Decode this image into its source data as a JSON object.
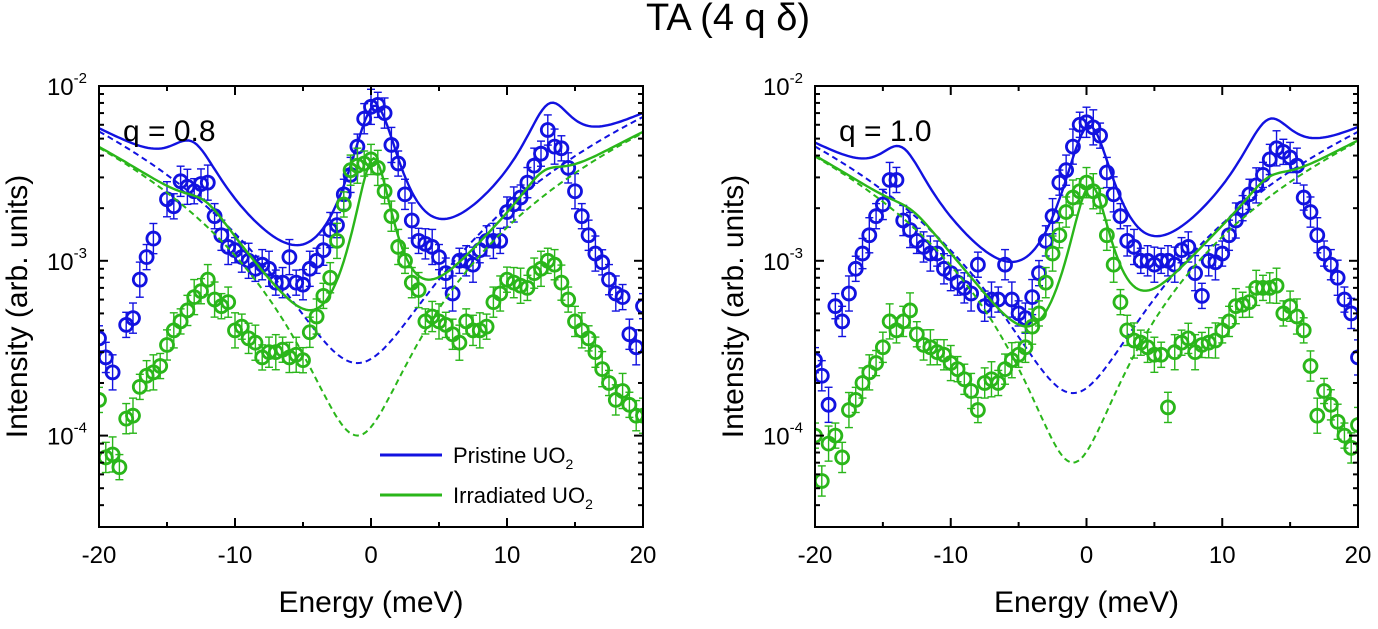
{
  "figure_title": "TA (4 q δ)",
  "legend": {
    "pristine": {
      "prefix": "Pristine UO",
      "sub": "2"
    },
    "irradiated": {
      "prefix": "Irradiated UO",
      "sub": "2"
    }
  },
  "colors": {
    "pristine": "#1212e0",
    "irradiated": "#2ab61a",
    "axis": "#000000"
  },
  "chart_data": [
    {
      "type": "scatter",
      "title": "",
      "annotation": "q = 0.8",
      "xlabel": "Energy (meV)",
      "ylabel": "Intensity (arb. units)",
      "xlim": [
        -20,
        20
      ],
      "ylim": [
        3e-05,
        0.01
      ],
      "yscale": "log",
      "xticks": [
        {
          "v": -20,
          "t": "-20"
        },
        {
          "v": -10,
          "t": "-10"
        },
        {
          "v": 0,
          "t": "0"
        },
        {
          "v": 10,
          "t": "10"
        },
        {
          "v": 20,
          "t": "20"
        }
      ],
      "yticks": [
        {
          "v": 0.0001,
          "base": "10",
          "exp": "-4"
        },
        {
          "v": 0.001,
          "base": "10",
          "exp": "-3"
        },
        {
          "v": 0.01,
          "base": "10",
          "exp": "-2"
        }
      ],
      "legend_position": "bottom-right",
      "series": [
        {
          "name": "Pristine UO2",
          "color_key": "pristine",
          "fit": {
            "peaks": [
              {
                "c": -13.2,
                "h": 0.0023,
                "w": 2.0
              },
              {
                "c": 0.3,
                "h": 0.0073,
                "w": 1.55
              },
              {
                "c": 13.2,
                "h": 0.0047,
                "w": 1.8
              }
            ],
            "bg": {
              "c": -1.0,
              "v": 0.00026,
              "k": 0.0058
            }
          },
          "x": [
            -20,
            -19.5,
            -19,
            -18,
            -17.5,
            -17,
            -16.5,
            -16,
            -15,
            -14.5,
            -14,
            -13.5,
            -13,
            -12.5,
            -12,
            -11.5,
            -11,
            -10.5,
            -10,
            -9.5,
            -9,
            -8.5,
            -8,
            -7.5,
            -7,
            -6.5,
            -6,
            -5.5,
            -5,
            -4.5,
            -4,
            -3.5,
            -3,
            -2.5,
            -2,
            -1.5,
            -1,
            -0.5,
            0,
            0.5,
            1,
            1.5,
            2,
            2.5,
            3,
            3.5,
            4,
            4.5,
            5,
            5.5,
            6,
            6.5,
            7,
            7.5,
            8,
            8.5,
            9,
            9.5,
            10,
            10.5,
            11,
            11.5,
            12,
            12.5,
            13,
            13.5,
            14,
            14.5,
            15,
            15.5,
            16,
            16.5,
            17,
            17.5,
            18,
            18.5,
            19,
            19.5,
            20
          ],
          "y": [
            0.00036,
            0.00028,
            0.00023,
            0.00043,
            0.00047,
            0.00078,
            0.00105,
            0.00134,
            0.00225,
            0.00205,
            0.00285,
            0.00265,
            0.0025,
            0.00275,
            0.0028,
            0.0018,
            0.0014,
            0.0012,
            0.00115,
            0.00105,
            0.001,
            0.0009,
            0.00095,
            0.0009,
            0.00075,
            0.00075,
            0.00105,
            0.00075,
            0.00073,
            0.0009,
            0.001,
            0.00115,
            0.0015,
            0.0016,
            0.0024,
            0.0031,
            0.0045,
            0.0065,
            0.0076,
            0.0078,
            0.007,
            0.0046,
            0.0036,
            0.0024,
            0.0017,
            0.0013,
            0.00125,
            0.0012,
            0.00105,
            0.00085,
            0.00065,
            0.001,
            0.001,
            0.00095,
            0.00115,
            0.0013,
            0.0013,
            0.0013,
            0.0019,
            0.0021,
            0.0023,
            0.0028,
            0.0035,
            0.0041,
            0.0056,
            0.0045,
            0.0044,
            0.0034,
            0.0025,
            0.0018,
            0.0014,
            0.0011,
            0.00098,
            0.00078,
            0.00065,
            0.00062,
            0.00038,
            0.00032,
            0.00055
          ]
        },
        {
          "name": "Irradiated UO2",
          "color_key": "irradiated",
          "fit": {
            "peaks": [
              {
                "c": -12.3,
                "h": 0.00055,
                "w": 2.1
              },
              {
                "c": 0.2,
                "h": 0.0037,
                "w": 1.2
              },
              {
                "c": 12.8,
                "h": 0.00088,
                "w": 1.9
              }
            ],
            "bg": {
              "c": -1.0,
              "v": 0.0001,
              "k": 0.0048
            }
          },
          "x": [
            -20,
            -19.5,
            -19,
            -18.5,
            -18,
            -17.5,
            -17,
            -16.5,
            -16,
            -15.5,
            -15,
            -14.5,
            -14,
            -13.5,
            -13,
            -12.5,
            -12,
            -11.5,
            -11,
            -10.5,
            -10,
            -9.5,
            -9,
            -8.5,
            -8,
            -7.5,
            -7,
            -6.5,
            -6,
            -5.5,
            -5,
            -4.5,
            -4,
            -3.5,
            -3,
            -2.5,
            -2,
            -1.5,
            -1,
            -0.5,
            0,
            0.5,
            1,
            1.5,
            2,
            2.5,
            3,
            3.5,
            4,
            4.5,
            5,
            5.5,
            6,
            6.5,
            7,
            7.5,
            8,
            8.5,
            9,
            9.5,
            10,
            10.5,
            11,
            11.5,
            12,
            12.5,
            13,
            13.5,
            14,
            14.5,
            15,
            15.5,
            16,
            16.5,
            17,
            17.5,
            18,
            18.5,
            19,
            19.5,
            20
          ],
          "y": [
            0.00016,
            7.5e-05,
            7.8e-05,
            6.6e-05,
            0.000125,
            0.00013,
            0.00019,
            0.00022,
            0.00023,
            0.00025,
            0.00033,
            0.0004,
            0.00045,
            0.00052,
            0.00062,
            0.00067,
            0.00078,
            0.0006,
            0.00055,
            0.00058,
            0.0004,
            0.00042,
            0.00036,
            0.00034,
            0.00028,
            0.0003,
            0.0003,
            0.00031,
            0.00028,
            0.00029,
            0.00027,
            0.00039,
            0.00048,
            0.00063,
            0.0008,
            0.0013,
            0.0021,
            0.0033,
            0.0035,
            0.0036,
            0.0038,
            0.0034,
            0.0025,
            0.0018,
            0.0012,
            0.001,
            0.00075,
            0.00068,
            0.00045,
            0.00048,
            0.00045,
            0.00043,
            0.00038,
            0.00034,
            0.00045,
            0.0004,
            0.0004,
            0.00042,
            0.00058,
            0.00065,
            0.00078,
            0.00075,
            0.00072,
            0.0007,
            0.00085,
            0.0009,
            0.001,
            0.00095,
            0.00075,
            0.0006,
            0.00045,
            0.0004,
            0.00036,
            0.0003,
            0.00024,
            0.0002,
            0.00016,
            0.00018,
            0.00015,
            0.00013,
            0.00013
          ]
        }
      ]
    },
    {
      "type": "scatter",
      "title": "",
      "annotation": "q = 1.0",
      "xlabel": "Energy (meV)",
      "ylabel": "Intensity (arb. units)",
      "xlim": [
        -20,
        20
      ],
      "ylim": [
        3e-05,
        0.01
      ],
      "yscale": "log",
      "xticks": [
        {
          "v": -20,
          "t": "-20"
        },
        {
          "v": -10,
          "t": "-10"
        },
        {
          "v": 0,
          "t": "0"
        },
        {
          "v": 10,
          "t": "10"
        },
        {
          "v": 20,
          "t": "20"
        }
      ],
      "yticks": [
        {
          "v": 0.0001,
          "base": "10",
          "exp": "-4"
        },
        {
          "v": 0.001,
          "base": "10",
          "exp": "-3"
        },
        {
          "v": 0.01,
          "base": "10",
          "exp": "-2"
        }
      ],
      "legend_position": "none",
      "series": [
        {
          "name": "Pristine UO2",
          "color_key": "pristine",
          "fit": {
            "peaks": [
              {
                "c": -13.7,
                "h": 0.0023,
                "w": 1.9
              },
              {
                "c": 0.2,
                "h": 0.0056,
                "w": 1.6
              },
              {
                "c": 13.5,
                "h": 0.0037,
                "w": 2.0
              }
            ],
            "bg": {
              "c": -1.0,
              "v": 0.000175,
              "k": 0.0048
            }
          },
          "x": [
            -20,
            -19.5,
            -19,
            -18.5,
            -18,
            -17.5,
            -17,
            -16.5,
            -16,
            -15.5,
            -15,
            -14.5,
            -14,
            -13.5,
            -13,
            -12.5,
            -12,
            -11.5,
            -11,
            -10.5,
            -10,
            -9.5,
            -9,
            -8.5,
            -8,
            -7.5,
            -7,
            -6.5,
            -6,
            -5.5,
            -5,
            -4.5,
            -4,
            -3.5,
            -3,
            -2.5,
            -2,
            -1.5,
            -1,
            -0.5,
            0,
            0.5,
            1,
            1.5,
            2,
            2.5,
            3,
            3.5,
            4,
            4.5,
            5,
            5.5,
            6,
            6.5,
            7,
            7.5,
            8,
            8.5,
            9,
            9.5,
            10,
            10.5,
            11,
            11.5,
            12,
            12.5,
            13,
            13.5,
            14,
            14.5,
            15,
            15.5,
            16,
            16.5,
            17,
            17.5,
            18,
            18.5,
            19,
            19.5,
            20
          ],
          "y": [
            0.00027,
            0.00022,
            0.00015,
            0.00055,
            0.00045,
            0.00065,
            0.0009,
            0.0011,
            0.0014,
            0.0018,
            0.0021,
            0.0029,
            0.0029,
            0.0017,
            0.0015,
            0.0013,
            0.0012,
            0.0011,
            0.0011,
            0.0009,
            0.00085,
            0.00075,
            0.0007,
            0.00065,
            0.00095,
            0.00055,
            0.0006,
            0.0006,
            0.00095,
            0.0006,
            0.0005,
            0.00047,
            0.00062,
            0.00085,
            0.0013,
            0.0018,
            0.0028,
            0.0033,
            0.0045,
            0.006,
            0.0062,
            0.0058,
            0.0052,
            0.0032,
            0.0024,
            0.0018,
            0.0013,
            0.0012,
            0.001,
            0.001,
            0.00095,
            0.001,
            0.001,
            0.00095,
            0.00115,
            0.0012,
            0.00085,
            0.00063,
            0.001,
            0.00098,
            0.0011,
            0.0014,
            0.0017,
            0.002,
            0.0024,
            0.0027,
            0.0031,
            0.0038,
            0.0044,
            0.0042,
            0.0039,
            0.0035,
            0.0023,
            0.0019,
            0.0014,
            0.0011,
            0.00095,
            0.0008,
            0.0006,
            0.0005,
            0.00028
          ]
        },
        {
          "name": "Irradiated UO2",
          "color_key": "irradiated",
          "fit": {
            "peaks": [
              {
                "c": -13.0,
                "h": 0.00033,
                "w": 2.2
              },
              {
                "c": 0.3,
                "h": 0.0026,
                "w": 1.35
              },
              {
                "c": 13.5,
                "h": 0.00068,
                "w": 2.0
              }
            ],
            "bg": {
              "c": -1.0,
              "v": 7e-05,
              "k": 0.0043
            }
          },
          "x": [
            -20,
            -19.5,
            -19,
            -18.5,
            -18,
            -17.5,
            -17,
            -16.5,
            -16,
            -15.5,
            -15,
            -14.5,
            -14,
            -13.5,
            -13,
            -12.5,
            -12,
            -11.5,
            -11,
            -10.5,
            -10,
            -9.5,
            -9,
            -8.5,
            -8,
            -7.5,
            -7,
            -6.5,
            -6,
            -5.5,
            -5,
            -4.5,
            -4,
            -3.5,
            -3,
            -2.5,
            -2,
            -1.5,
            -1,
            -0.5,
            0,
            0.5,
            1,
            1.5,
            2,
            2.5,
            3,
            3.5,
            4,
            4.5,
            5,
            5.5,
            6,
            6.5,
            7,
            7.5,
            8,
            8.5,
            9,
            9.5,
            10,
            10.5,
            11,
            11.5,
            12,
            12.5,
            13,
            13.5,
            14,
            14.5,
            15,
            15.5,
            16,
            16.5,
            17,
            17.5,
            18,
            18.5,
            19,
            19.5,
            20
          ],
          "y": [
            0.0001,
            5.5e-05,
            9e-05,
            0.0001,
            7.5e-05,
            0.00014,
            0.00016,
            0.0002,
            0.00023,
            0.00026,
            0.00032,
            0.00045,
            0.0004,
            0.00045,
            0.00052,
            0.00038,
            0.00033,
            0.00032,
            0.0003,
            0.00029,
            0.00026,
            0.00024,
            0.00021,
            0.00018,
            0.00014,
            0.0002,
            0.00021,
            0.0002,
            0.00024,
            0.00027,
            0.00029,
            0.00032,
            0.00042,
            0.0005,
            0.00075,
            0.0011,
            0.0014,
            0.0019,
            0.0023,
            0.0025,
            0.0028,
            0.0025,
            0.0022,
            0.0014,
            0.00095,
            0.00058,
            0.0004,
            0.00035,
            0.00034,
            0.00032,
            0.00029,
            0.00029,
            0.000145,
            0.0003,
            0.00034,
            0.00036,
            0.0003,
            0.00033,
            0.00034,
            0.00035,
            0.0004,
            0.00045,
            0.00055,
            0.00056,
            0.00058,
            0.0007,
            0.0007,
            0.0007,
            0.00072,
            0.0005,
            0.00055,
            0.00048,
            0.0004,
            0.00025,
            0.00013,
            0.00018,
            0.00015,
            0.00012,
            0.0001,
            8.5e-05,
            0.000115
          ]
        }
      ]
    }
  ]
}
